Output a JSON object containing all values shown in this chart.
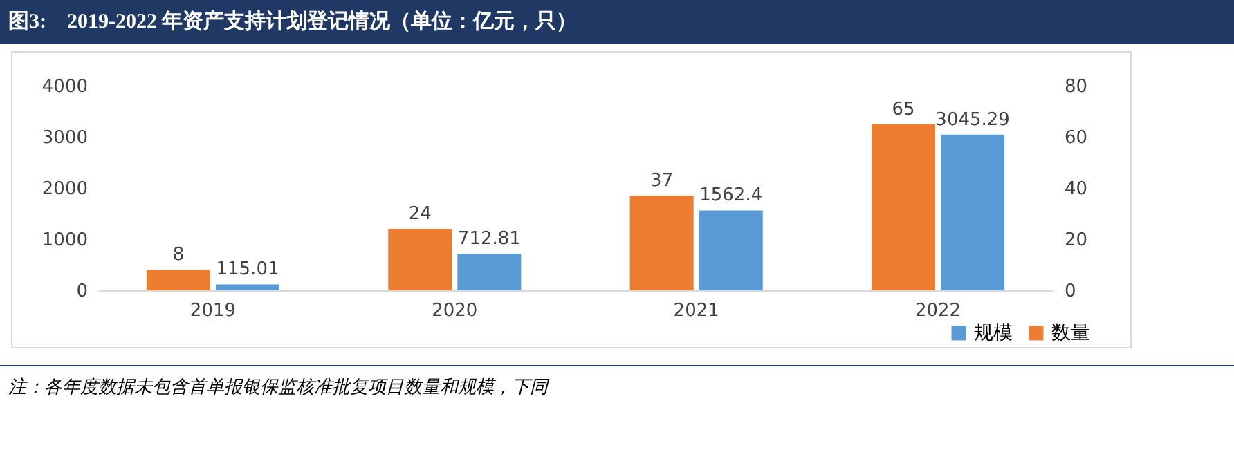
{
  "chart_data": {
    "type": "bar",
    "title": "图3:    2019-2022 年资产支持计划登记情况（单位：亿元，只）",
    "categories": [
      "2019",
      "2020",
      "2021",
      "2022"
    ],
    "series": [
      {
        "name": "规模",
        "color": "#5b9bd5",
        "values": [
          115.01,
          712.81,
          1562.4,
          3045.29
        ]
      },
      {
        "name": "数量",
        "color": "#ed7d31",
        "axis": "y2",
        "values": [
          8,
          24,
          37,
          65
        ]
      }
    ],
    "ylim": [
      0,
      4000
    ],
    "yticks": [
      0,
      1000,
      2000,
      3000,
      4000
    ],
    "y2lim": [
      0,
      80
    ],
    "y2ticks": [
      0,
      20,
      40,
      60,
      80
    ],
    "data_labels": true,
    "grid": false,
    "legend": "bottom right",
    "annotations": [
      "注：各年度数据未包含首单报银保监核准批复项目数量和规模，下同"
    ]
  }
}
